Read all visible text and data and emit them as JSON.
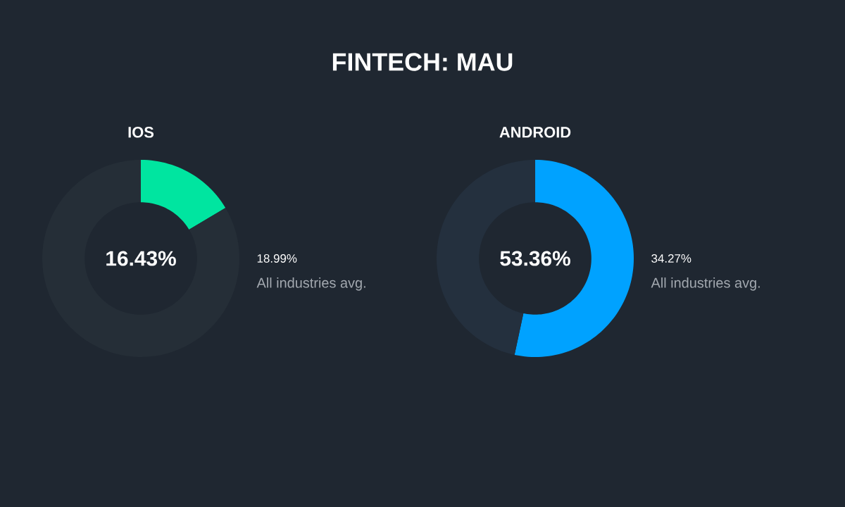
{
  "chart_data": [
    {
      "type": "other",
      "title": "FINTECH: MAU"
    },
    {
      "type": "donut",
      "title": "IOS",
      "categories": [
        null,
        null
      ],
      "values": [
        16.43,
        83.57
      ],
      "colors": [
        "#00e5a0",
        "#252e37"
      ],
      "annotations": [
        "16.43%",
        "18.99%",
        "All industries avg."
      ]
    },
    {
      "type": "donut",
      "title": "ANDROID",
      "categories": [
        null,
        null
      ],
      "values": [
        53.36,
        46.64
      ],
      "colors": [
        "#00a2ff",
        "#24303e"
      ],
      "annotations": [
        "53.36%",
        "34.27%",
        "All industries avg."
      ]
    }
  ]
}
